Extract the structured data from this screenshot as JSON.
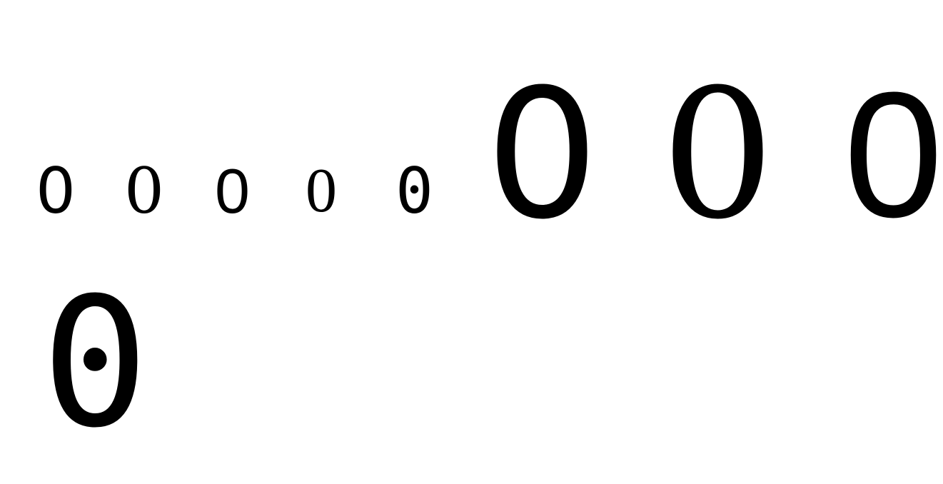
{
  "glyphs": {
    "small_row": [
      "0",
      "0",
      "0",
      "0",
      "0"
    ],
    "large_row": [
      "0",
      "0",
      "0"
    ],
    "bottom_row": [
      "0"
    ]
  }
}
